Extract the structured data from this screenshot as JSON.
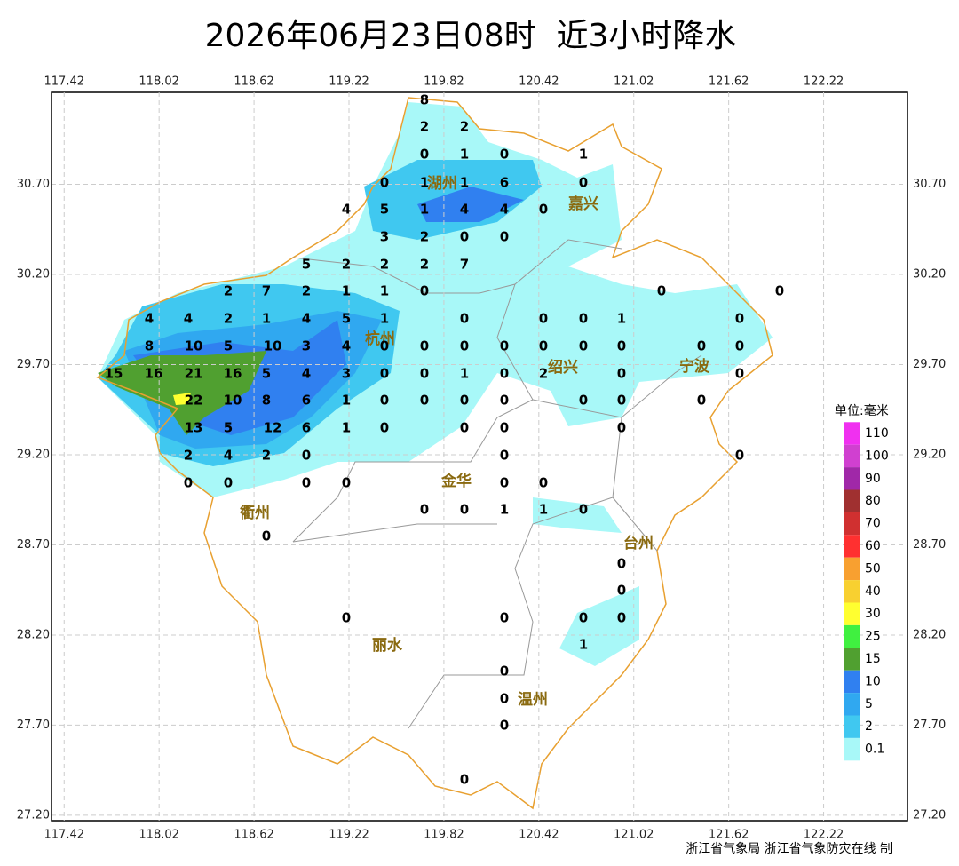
{
  "title": "2026年06月23日08时  近3小时降水",
  "map": {
    "xlim": [
      117.34,
      122.75
    ],
    "ylim": [
      27.17,
      31.21
    ],
    "xticks": [
      117.42,
      118.02,
      118.62,
      119.22,
      119.82,
      120.42,
      121.02,
      121.62,
      122.22
    ],
    "yticks": [
      {
        "value": 30.7,
        "label": "30.70"
      },
      {
        "value": 30.2,
        "label": "30.20"
      },
      {
        "value": 29.7,
        "label": "29.70"
      },
      {
        "value": 29.2,
        "label": "29.20"
      },
      {
        "value": 28.7,
        "label": "28.70"
      },
      {
        "value": 28.2,
        "label": "28.20"
      },
      {
        "value": 27.7,
        "label": "27.70"
      },
      {
        "value": 27.2,
        "label": "27.20"
      }
    ],
    "grid": true
  },
  "cities": [
    "湖州",
    "嘉兴",
    "杭州",
    "绍兴",
    "宁波",
    "衢州",
    "金华",
    "台州",
    "丽水",
    "温州"
  ],
  "stations": [
    8,
    2,
    2,
    0,
    1,
    0,
    1,
    0,
    1,
    1,
    6,
    0,
    4,
    5,
    1,
    4,
    4,
    0,
    3,
    2,
    0,
    0,
    5,
    2,
    2,
    2,
    7,
    2,
    7,
    2,
    1,
    1,
    0,
    0,
    0,
    4,
    4,
    2,
    1,
    4,
    5,
    1,
    0,
    0,
    0,
    1,
    0,
    8,
    10,
    5,
    10,
    3,
    4,
    0,
    0,
    0,
    0,
    0,
    0,
    0,
    0,
    0,
    15,
    16,
    21,
    16,
    5,
    4,
    3,
    0,
    0,
    1,
    0,
    2,
    0,
    0,
    22,
    10,
    8,
    6,
    1,
    0,
    0,
    0,
    0,
    0,
    0,
    0,
    13,
    5,
    12,
    6,
    1,
    0,
    0,
    0,
    0,
    2,
    4,
    2,
    0,
    0,
    0,
    0,
    0,
    0,
    0,
    0,
    0,
    0,
    0,
    1,
    1,
    0,
    0,
    0,
    0,
    0,
    0,
    0,
    0,
    1,
    0,
    0,
    0,
    0
  ],
  "legend": {
    "title": "单位:毫米",
    "levels": [
      {
        "value": 110,
        "color": "#f030f0"
      },
      {
        "value": 100,
        "color": "#d040d0"
      },
      {
        "value": 90,
        "color": "#a028a8"
      },
      {
        "value": 80,
        "color": "#a03030"
      },
      {
        "value": 70,
        "color": "#d03030"
      },
      {
        "value": 60,
        "color": "#ff3030"
      },
      {
        "value": 50,
        "color": "#f8a030"
      },
      {
        "value": 40,
        "color": "#f8d030"
      },
      {
        "value": 30,
        "color": "#ffff30"
      },
      {
        "value": 25,
        "color": "#40f040"
      },
      {
        "value": 15,
        "color": "#50a030"
      },
      {
        "value": 10,
        "color": "#3080f0"
      },
      {
        "value": 5,
        "color": "#30a8f0"
      },
      {
        "value": 2,
        "color": "#40c8f0"
      },
      {
        "value": 0.1,
        "color": "#a8f8f8"
      }
    ]
  },
  "credit": "浙江省气象局 浙江省气象防灾在线 制"
}
